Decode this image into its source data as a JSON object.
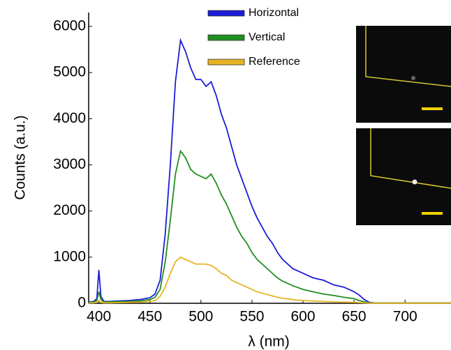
{
  "chart_data": {
    "type": "line",
    "xlabel": "λ (nm)",
    "ylabel": "Counts (a.u.)",
    "x": [
      390,
      395,
      398,
      400,
      402,
      405,
      410,
      420,
      430,
      440,
      450,
      455,
      460,
      465,
      470,
      475,
      480,
      485,
      490,
      495,
      500,
      505,
      510,
      515,
      520,
      525,
      530,
      535,
      540,
      545,
      550,
      555,
      560,
      565,
      570,
      575,
      580,
      590,
      600,
      610,
      620,
      630,
      640,
      650,
      655,
      660,
      665,
      670,
      690,
      710,
      745
    ],
    "series": [
      {
        "name": "Horizontal",
        "color": "#1c1cd8",
        "values": [
          30,
          40,
          100,
          720,
          150,
          40,
          40,
          50,
          60,
          80,
          120,
          200,
          500,
          1500,
          3000,
          4800,
          5700,
          5450,
          5100,
          4850,
          4850,
          4700,
          4800,
          4500,
          4100,
          3800,
          3400,
          3000,
          2700,
          2400,
          2100,
          1850,
          1650,
          1450,
          1300,
          1100,
          950,
          750,
          650,
          550,
          500,
          400,
          350,
          250,
          180,
          80,
          20,
          10,
          10,
          10,
          10
        ]
      },
      {
        "name": "Vertical",
        "color": "#1f8f1f",
        "values": [
          20,
          30,
          60,
          250,
          80,
          30,
          30,
          35,
          40,
          50,
          80,
          130,
          300,
          900,
          1800,
          2800,
          3300,
          3150,
          2900,
          2800,
          2750,
          2700,
          2800,
          2600,
          2350,
          2150,
          1900,
          1650,
          1450,
          1300,
          1100,
          950,
          850,
          750,
          650,
          550,
          480,
          380,
          300,
          250,
          200,
          170,
          130,
          100,
          60,
          30,
          10,
          5,
          5,
          5,
          5
        ]
      },
      {
        "name": "Reference",
        "color": "#e6b422",
        "values": [
          10,
          10,
          20,
          60,
          20,
          10,
          10,
          15,
          20,
          25,
          40,
          60,
          150,
          350,
          650,
          900,
          1000,
          950,
          900,
          850,
          850,
          850,
          820,
          750,
          650,
          600,
          500,
          450,
          400,
          350,
          300,
          250,
          220,
          190,
          160,
          130,
          110,
          80,
          60,
          50,
          40,
          30,
          25,
          20,
          15,
          10,
          5,
          5,
          5,
          5,
          5
        ]
      }
    ],
    "xlim": [
      390,
      745
    ],
    "xticks": [
      400,
      450,
      500,
      550,
      600,
      650,
      700
    ],
    "ylim": [
      0,
      6300
    ],
    "yticks": [
      0,
      1000,
      2000,
      3000,
      4000,
      5000,
      6000
    ]
  }
}
